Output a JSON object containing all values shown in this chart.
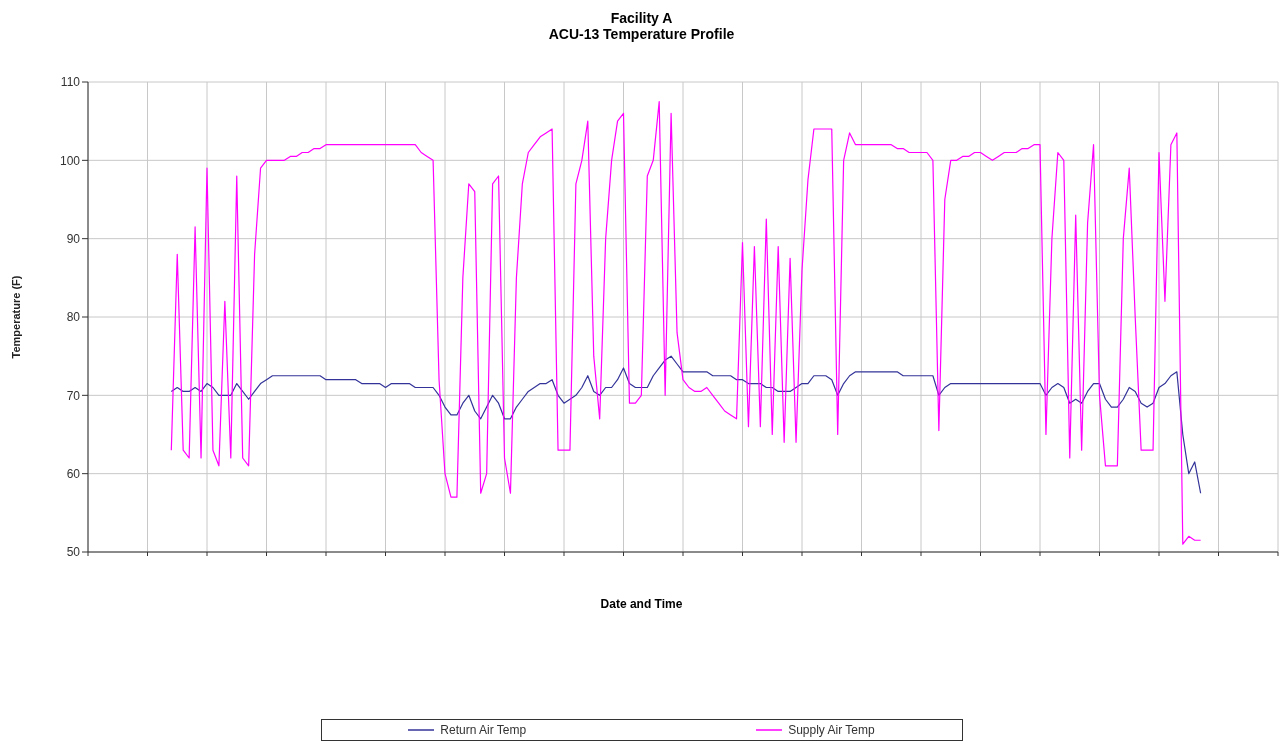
{
  "chart_data": {
    "type": "line",
    "title": "Facility A",
    "subtitle": "ACU-13 Temperature Profile",
    "xlabel": "Date and Time",
    "ylabel": "Temperature (F)",
    "categories": [
      null,
      null,
      null,
      null,
      null,
      null,
      null,
      null,
      null,
      null,
      null,
      null,
      null,
      null,
      null,
      null,
      null,
      null,
      null,
      null,
      null,
      null,
      null,
      null,
      null,
      null,
      null,
      null,
      null,
      null,
      null,
      null,
      null,
      null,
      null,
      null,
      null,
      null,
      null,
      null,
      null,
      null,
      null,
      null,
      null,
      null,
      null,
      null,
      null,
      null,
      null,
      null,
      null,
      null,
      null,
      null,
      null,
      null,
      null,
      null,
      null,
      null,
      null,
      null,
      null,
      null,
      null,
      null,
      null,
      null,
      null,
      null,
      null,
      null,
      null,
      null,
      null,
      null,
      null,
      null,
      null,
      null,
      null,
      null,
      null,
      null,
      null,
      null,
      null,
      null,
      null,
      null,
      null,
      null,
      null,
      null,
      null,
      null,
      null,
      null,
      null,
      null,
      null,
      null,
      null,
      null,
      null,
      null,
      null,
      null,
      null,
      null,
      null,
      null,
      null,
      null,
      null,
      null,
      null,
      null,
      null,
      null,
      null,
      null,
      null,
      null,
      null,
      null,
      null,
      null,
      null,
      null,
      null,
      null,
      null,
      null,
      null,
      null,
      null,
      null,
      null,
      null,
      null,
      null,
      null,
      null,
      null,
      null,
      null,
      null,
      null,
      null,
      null,
      null,
      null,
      null,
      null,
      null,
      null,
      null,
      null,
      null,
      null,
      null,
      null,
      null,
      null,
      null,
      null,
      null,
      null,
      null,
      null,
      null,
      null,
      null,
      null,
      null,
      null,
      null,
      null,
      null,
      null,
      null,
      null,
      null,
      null,
      null,
      null,
      null,
      null,
      null,
      null,
      null,
      null,
      null,
      null,
      null,
      null,
      null,
      null
    ],
    "series": [
      {
        "name": "Return Air Temp",
        "color": "#333399",
        "values": [
          null,
          null,
          null,
          null,
          null,
          null,
          null,
          null,
          null,
          null,
          null,
          null,
          null,
          null,
          70.5,
          71,
          70.5,
          70.5,
          71,
          70.5,
          71.5,
          71,
          70,
          70,
          70,
          71.5,
          70.5,
          69.5,
          70.5,
          71.5,
          72,
          72.5,
          72.5,
          72.5,
          72.5,
          72.5,
          72.5,
          72.5,
          72.5,
          72.5,
          72,
          72,
          72,
          72,
          72,
          72,
          71.5,
          71.5,
          71.5,
          71.5,
          71,
          71.5,
          71.5,
          71.5,
          71.5,
          71,
          71,
          71,
          71,
          70,
          68.5,
          67.5,
          67.5,
          69,
          70,
          68,
          67,
          68.5,
          70,
          69,
          67,
          67,
          68.5,
          69.5,
          70.5,
          71,
          71.5,
          71.5,
          72,
          70,
          69,
          69.5,
          70,
          71,
          72.5,
          70.5,
          70,
          71,
          71,
          72,
          73.5,
          71.5,
          71,
          71,
          71,
          72.5,
          73.5,
          74.5,
          75,
          74,
          73,
          73,
          73,
          73,
          73,
          72.5,
          72.5,
          72.5,
          72.5,
          72,
          72,
          71.5,
          71.5,
          71.5,
          71,
          71,
          70.5,
          70.5,
          70.5,
          71,
          71.5,
          71.5,
          72.5,
          72.5,
          72.5,
          72,
          70,
          71.5,
          72.5,
          73,
          73,
          73,
          73,
          73,
          73,
          73,
          73,
          72.5,
          72.5,
          72.5,
          72.5,
          72.5,
          72.5,
          70,
          71,
          71.5,
          71.5,
          71.5,
          71.5,
          71.5,
          71.5,
          71.5,
          71.5,
          71.5,
          71.5,
          71.5,
          71.5,
          71.5,
          71.5,
          71.5,
          71.5,
          70,
          71,
          71.5,
          71,
          69,
          69.5,
          69,
          70.5,
          71.5,
          71.5,
          69.5,
          68.5,
          68.5,
          69.5,
          71,
          70.5,
          69,
          68.5,
          69,
          71,
          71.5,
          72.5,
          73,
          65,
          60,
          61.5,
          57.5,
          null,
          null,
          null,
          null,
          null,
          null,
          null,
          null,
          null,
          null,
          null,
          null,
          null
        ]
      },
      {
        "name": "Supply Air Temp",
        "color": "#ff00ff",
        "values": [
          null,
          null,
          null,
          null,
          null,
          null,
          null,
          null,
          null,
          null,
          null,
          null,
          null,
          null,
          63,
          88,
          63,
          62,
          91.5,
          62,
          99,
          63,
          61,
          82,
          62,
          98,
          62,
          61,
          88,
          99,
          100,
          100,
          100,
          100,
          100.5,
          100.5,
          101,
          101,
          101.5,
          101.5,
          102,
          102,
          102,
          102,
          102,
          102,
          102,
          102,
          102,
          102,
          102,
          102,
          102,
          102,
          102,
          102,
          101,
          100.5,
          100,
          72,
          60,
          57,
          57,
          85,
          97,
          96,
          57.5,
          60,
          97,
          98,
          62,
          57.5,
          85,
          97,
          101,
          102,
          103,
          103.5,
          104,
          63,
          63,
          63,
          97,
          100,
          105,
          75,
          67,
          90,
          100,
          105,
          106,
          69,
          69,
          70,
          98,
          100,
          107.5,
          70,
          106,
          78,
          72,
          71,
          70.5,
          70.5,
          71,
          70,
          69,
          68,
          67.5,
          67,
          89.5,
          66,
          89,
          66,
          92.5,
          65,
          89,
          64,
          87.5,
          64,
          86,
          97.5,
          104,
          104,
          104,
          104,
          65,
          100,
          103.5,
          102,
          102,
          102,
          102,
          102,
          102,
          102,
          101.5,
          101.5,
          101,
          101,
          101,
          101,
          100,
          65.5,
          95,
          100,
          100,
          100.5,
          100.5,
          101,
          101,
          100.5,
          100,
          100.5,
          101,
          101,
          101,
          101.5,
          101.5,
          102,
          102,
          65,
          90,
          101,
          100,
          62,
          93,
          63,
          92,
          102,
          70,
          61,
          61,
          61,
          90,
          99,
          80,
          63,
          63,
          63,
          101,
          82,
          102,
          103.5,
          51,
          52,
          51.5,
          51.5,
          null,
          null,
          null,
          null,
          null,
          null,
          null,
          null,
          null,
          null,
          null,
          null,
          null
        ]
      }
    ],
    "ylim": [
      50,
      110
    ],
    "yticks": [
      50,
      60,
      70,
      80,
      90,
      100,
      110
    ],
    "grid": true,
    "legend": "bottom",
    "tick_labels": "y",
    "marker": "none",
    "line_style": "solid"
  }
}
